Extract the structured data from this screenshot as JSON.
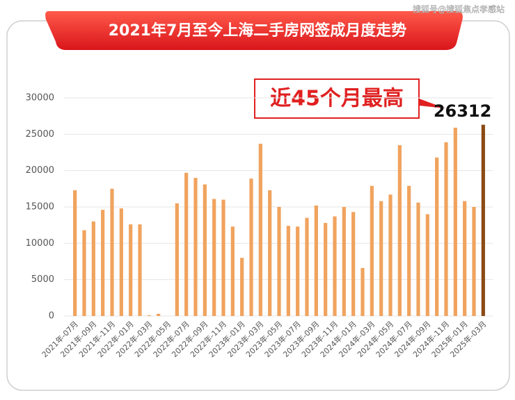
{
  "watermark": "搜狐号@搜狐焦点孝感站",
  "chart_data": {
    "type": "bar",
    "title": "2021年7月至今上海二手房网签成月度走势",
    "annotation": "近45个月最高",
    "categories": [
      "2021年-07月",
      null,
      "2021年-09月",
      null,
      "2021年-11月",
      null,
      "2022年-01月",
      null,
      "2022年-03月",
      null,
      "2022年-05月",
      null,
      "2022年-07月",
      null,
      "2022年-09月",
      null,
      "2022年-11月",
      null,
      "2023年-01月",
      null,
      "2023年-03月",
      null,
      "2023年-05月",
      null,
      "2023年-07月",
      null,
      "2023年-09月",
      null,
      "2023年-11月",
      null,
      "2024年-01月",
      null,
      "2024年-03月",
      null,
      "2024年-05月",
      null,
      "2024年-07月",
      null,
      "2024年-09月",
      null,
      "2024年-11月",
      null,
      "2025年-01月",
      null,
      "2025年-03月"
    ],
    "values": [
      17300,
      11800,
      13000,
      14600,
      17500,
      14800,
      12600,
      12600,
      100,
      300,
      0,
      15500,
      19700,
      19000,
      18100,
      16100,
      16000,
      12300,
      8000,
      18900,
      23700,
      17300,
      15000,
      12400,
      12300,
      13500,
      15200,
      12800,
      13700,
      15000,
      14300,
      6600,
      17900,
      15800,
      16700,
      23500,
      17900,
      15600,
      14000,
      21800,
      23900,
      25900,
      15800,
      15000,
      26312
    ],
    "color": "#f0a35e",
    "highlight_color": "#8b4a14",
    "ylim": [
      0,
      30000
    ],
    "yticks": [
      0,
      5000,
      10000,
      15000,
      20000,
      25000,
      30000
    ],
    "grid": true
  }
}
